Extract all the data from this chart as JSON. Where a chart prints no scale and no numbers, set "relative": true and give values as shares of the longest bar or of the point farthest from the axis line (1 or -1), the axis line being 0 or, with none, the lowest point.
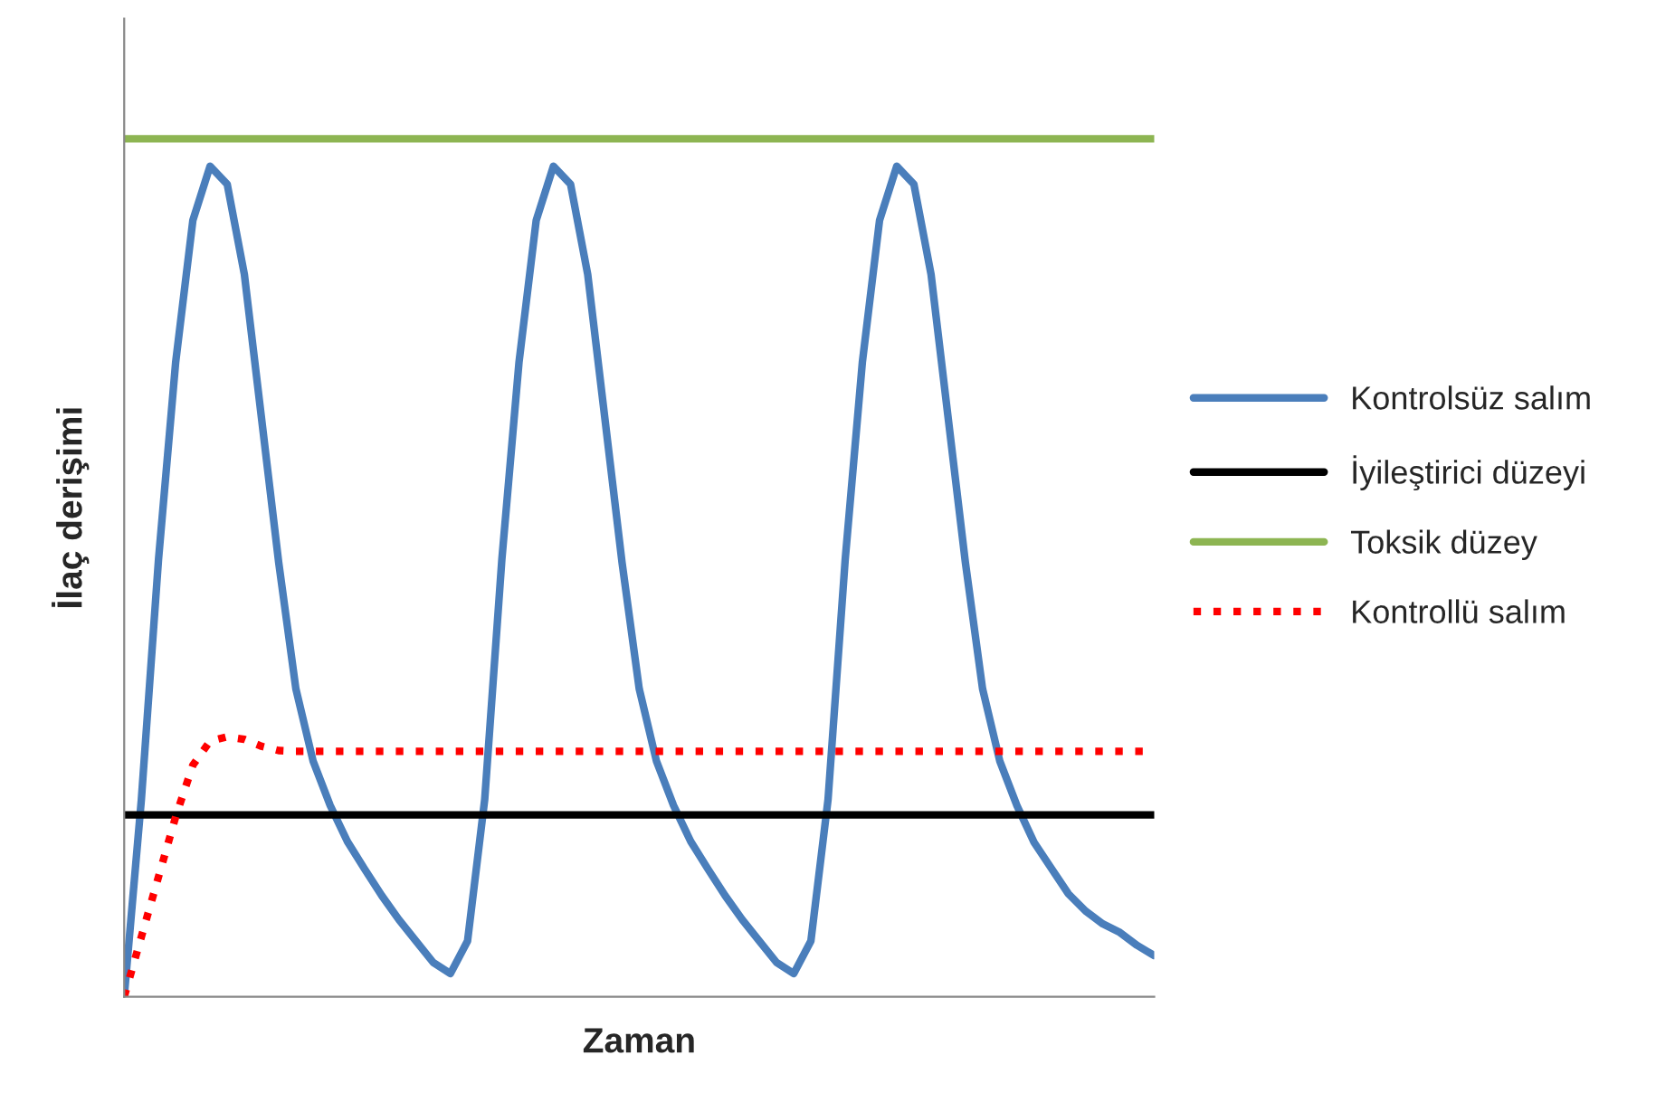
{
  "chart_data": {
    "type": "line",
    "relative": true,
    "xlabel": "Zaman",
    "ylabel": "İlaç derişimi",
    "legend": "right",
    "marker": "none",
    "categories": [
      null,
      null,
      null,
      null,
      null,
      null,
      null,
      null,
      null,
      null,
      null,
      null,
      null,
      null,
      null,
      null,
      null,
      null,
      null,
      null,
      null,
      null,
      null,
      null,
      null,
      null,
      null,
      null,
      null,
      null,
      null,
      null,
      null,
      null,
      null,
      null,
      null,
      null,
      null,
      null,
      null,
      null,
      null,
      null,
      null,
      null,
      null,
      null,
      null,
      null,
      null,
      null,
      null,
      null,
      null,
      null,
      null,
      null,
      null,
      null,
      null
    ],
    "series": [
      {
        "name": "Kontrolsüz salım",
        "color": "#4a7ebb",
        "line_style": "solid",
        "values": [
          0,
          0.23,
          0.51,
          0.74,
          0.905,
          0.968,
          0.947,
          0.842,
          0.674,
          0.506,
          0.359,
          0.275,
          0.223,
          0.181,
          0.149,
          0.118,
          0.09,
          0.065,
          0.04,
          0.027,
          0.065,
          0.23,
          0.51,
          0.74,
          0.905,
          0.968,
          0.947,
          0.842,
          0.674,
          0.506,
          0.359,
          0.275,
          0.223,
          0.181,
          0.149,
          0.118,
          0.09,
          0.065,
          0.04,
          0.027,
          0.065,
          0.23,
          0.51,
          0.74,
          0.905,
          0.968,
          0.947,
          0.842,
          0.674,
          0.506,
          0.359,
          0.275,
          0.223,
          0.18,
          0.15,
          0.12,
          0.1,
          0.085,
          0.075,
          0.06,
          0.048
        ]
      },
      {
        "name": "İyileştirici düzeyi",
        "color": "#000000",
        "line_style": "solid",
        "values": [
          0.212,
          0.212,
          0.212,
          0.212,
          0.212,
          0.212,
          0.212,
          0.212,
          0.212,
          0.212,
          0.212,
          0.212,
          0.212,
          0.212,
          0.212,
          0.212,
          0.212,
          0.212,
          0.212,
          0.212,
          0.212,
          0.212,
          0.212,
          0.212,
          0.212,
          0.212,
          0.212,
          0.212,
          0.212,
          0.212,
          0.212,
          0.212,
          0.212,
          0.212,
          0.212,
          0.212,
          0.212,
          0.212,
          0.212,
          0.212,
          0.212,
          0.212,
          0.212,
          0.212,
          0.212,
          0.212,
          0.212,
          0.212,
          0.212,
          0.212,
          0.212,
          0.212,
          0.212,
          0.212,
          0.212,
          0.212,
          0.212,
          0.212,
          0.212,
          0.212,
          0.212
        ]
      },
      {
        "name": "Toksik düzey",
        "color": "#8db552",
        "line_style": "solid",
        "values": [
          1,
          1,
          1,
          1,
          1,
          1,
          1,
          1,
          1,
          1,
          1,
          1,
          1,
          1,
          1,
          1,
          1,
          1,
          1,
          1,
          1,
          1,
          1,
          1,
          1,
          1,
          1,
          1,
          1,
          1,
          1,
          1,
          1,
          1,
          1,
          1,
          1,
          1,
          1,
          1,
          1,
          1,
          1,
          1,
          1,
          1,
          1,
          1,
          1,
          1,
          1,
          1,
          1,
          1,
          1,
          1,
          1,
          1,
          1,
          1,
          1
        ]
      },
      {
        "name": "Kontrollü salım",
        "color": "#ff0000",
        "line_style": "dotted",
        "values": [
          0,
          0.07,
          0.14,
          0.21,
          0.27,
          0.298,
          0.303,
          0.3,
          0.292,
          0.287,
          0.286,
          0.286,
          0.286,
          0.286,
          0.286,
          0.286,
          0.286,
          0.286,
          0.286,
          0.286,
          0.286,
          0.286,
          0.286,
          0.286,
          0.286,
          0.286,
          0.286,
          0.286,
          0.286,
          0.286,
          0.286,
          0.286,
          0.286,
          0.286,
          0.286,
          0.286,
          0.286,
          0.286,
          0.286,
          0.286,
          0.286,
          0.286,
          0.286,
          0.286,
          0.286,
          0.286,
          0.286,
          0.286,
          0.286,
          0.286,
          0.286,
          0.286,
          0.286,
          0.286,
          0.286,
          0.286,
          0.286,
          0.286,
          0.286,
          0.286,
          0.286
        ]
      }
    ]
  }
}
